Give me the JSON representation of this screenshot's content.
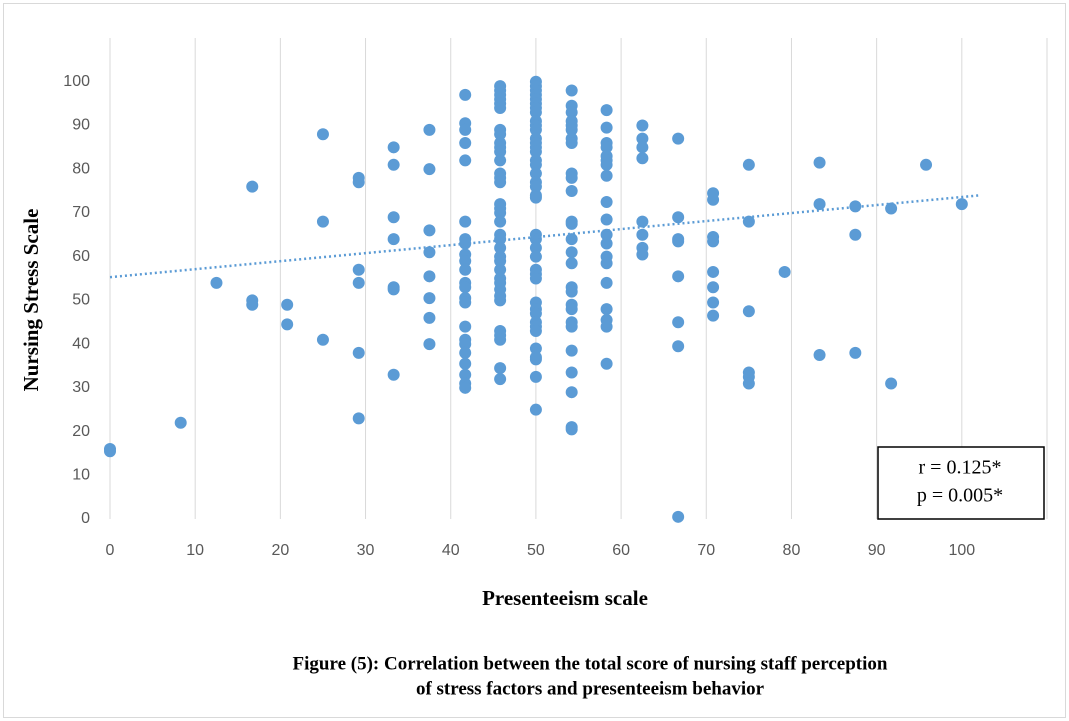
{
  "chart_data": {
    "type": "scatter",
    "x_label": "Presenteeism scale",
    "y_label": "Nursing Stress Scale",
    "caption": [
      "Figure (5): Correlation between the total score of nursing staff perception",
      "of stress factors and presenteeism behavior"
    ],
    "annotations": [
      "r = 0.125*",
      "p = 0.005*"
    ],
    "color": "#5b9bd5",
    "trendline": {
      "x": [
        0,
        102
      ],
      "y": [
        55.3,
        74
      ]
    },
    "xlim": [
      0,
      110
    ],
    "xticks": [
      0,
      10,
      20,
      30,
      40,
      50,
      60,
      70,
      80,
      90,
      100
    ],
    "ylim": [
      0,
      110
    ],
    "yticks": [
      0,
      10,
      20,
      30,
      40,
      50,
      60,
      70,
      80,
      90,
      100
    ],
    "grid": true,
    "x": [
      0,
      0,
      8.3,
      12.5,
      16.7,
      16.7,
      16.7,
      20.8,
      20.8,
      25,
      25,
      25,
      29.2,
      29.2,
      29.2,
      29.2,
      29.2,
      29.2,
      33.3,
      33.3,
      33.3,
      33.3,
      33.3,
      33.3,
      33.3,
      37.5,
      37.5,
      37.5,
      37.5,
      37.5,
      37.5,
      37.5,
      37.5,
      41.7,
      41.7,
      41.7,
      41.7,
      41.7,
      41.7,
      41.7,
      41.7,
      41.7,
      41.7,
      41.7,
      41.7,
      41.7,
      41.7,
      41.7,
      41.7,
      41.7,
      41.7,
      41.7,
      41.7,
      41.7,
      41.7,
      41.7,
      45.8,
      45.8,
      45.8,
      45.8,
      45.8,
      45.8,
      45.8,
      45.8,
      45.8,
      45.8,
      45.8,
      45.8,
      45.8,
      45.8,
      45.8,
      45.8,
      45.8,
      45.8,
      45.8,
      45.8,
      45.8,
      45.8,
      45.8,
      45.8,
      45.8,
      45.8,
      45.8,
      45.8,
      45.8,
      45.8,
      45.8,
      45.8,
      45.8,
      45.8,
      45.8,
      50,
      50,
      50,
      50,
      50,
      50,
      50,
      50,
      50,
      50,
      50,
      50,
      50,
      50,
      50,
      50,
      50,
      50,
      50,
      50,
      50,
      50,
      50,
      50,
      50,
      50,
      50,
      50,
      50,
      50,
      50,
      50,
      50,
      50,
      50,
      50,
      50,
      50,
      50,
      50,
      54.2,
      54.2,
      54.2,
      54.2,
      54.2,
      54.2,
      54.2,
      54.2,
      54.2,
      54.2,
      54.2,
      54.2,
      54.2,
      54.2,
      54.2,
      54.2,
      54.2,
      54.2,
      54.2,
      54.2,
      54.2,
      54.2,
      54.2,
      54.2,
      54.2,
      54.2,
      54.2,
      58.3,
      58.3,
      58.3,
      58.3,
      58.3,
      58.3,
      58.3,
      58.3,
      58.3,
      58.3,
      58.3,
      58.3,
      58.3,
      58.3,
      58.3,
      58.3,
      58.3,
      58.3,
      58.3,
      62.5,
      62.5,
      62.5,
      62.5,
      62.5,
      62.5,
      62.5,
      62.5,
      66.7,
      66.7,
      66.7,
      66.7,
      66.7,
      66.7,
      66.7,
      66.7,
      70.8,
      70.8,
      70.8,
      70.8,
      70.8,
      70.8,
      70.8,
      70.8,
      75,
      75,
      75,
      75,
      75,
      75,
      79.2,
      83.3,
      83.3,
      83.3,
      87.5,
      87.5,
      87.5,
      91.7,
      91.7,
      95.8,
      100
    ],
    "values": [
      16,
      15.5,
      22,
      54,
      76,
      50,
      49,
      49,
      44.5,
      88,
      68,
      41,
      78,
      77,
      57,
      54,
      38,
      23,
      85,
      81,
      69,
      64,
      53,
      52.5,
      33,
      89,
      80,
      66,
      61,
      55.5,
      50.5,
      46,
      40,
      97,
      90.5,
      89,
      86,
      82,
      68,
      64,
      63,
      60.5,
      59,
      57,
      54,
      53,
      50.5,
      49.5,
      44,
      41,
      40,
      38,
      35.5,
      33,
      31,
      30,
      99,
      98,
      97,
      96,
      95,
      94,
      89,
      88,
      86,
      85,
      84,
      82,
      79,
      78,
      77,
      72,
      71,
      70,
      68,
      65,
      64,
      62,
      60,
      59,
      57,
      55,
      54,
      52.5,
      51,
      50,
      43,
      42,
      41,
      34.5,
      32,
      100,
      99,
      98,
      97,
      96,
      95,
      94,
      93,
      91,
      90,
      89,
      87,
      86,
      85,
      84,
      82,
      81,
      79,
      77,
      76,
      74,
      73.5,
      65,
      64,
      62,
      60,
      57,
      56,
      55,
      49.5,
      48,
      47,
      45,
      44,
      43,
      39,
      37,
      36.5,
      32.5,
      25,
      98,
      94.5,
      93,
      91,
      90,
      89,
      87,
      86,
      79,
      78,
      75,
      68,
      67.5,
      64,
      61,
      58.5,
      53,
      52,
      49,
      48,
      45,
      44,
      38.5,
      33.5,
      29,
      21,
      20.5,
      93.5,
      89.5,
      86,
      85,
      83,
      82,
      81,
      78.5,
      72.5,
      68.5,
      65,
      63,
      60,
      58.5,
      54,
      48,
      45.5,
      44,
      35.5,
      90,
      87,
      85,
      82.5,
      68,
      65,
      62,
      60.5,
      87,
      69,
      64,
      63.5,
      55.5,
      45,
      39.5,
      0.5,
      74.5,
      73,
      64.5,
      63.5,
      56.5,
      53,
      49.5,
      46.5,
      81,
      68,
      47.5,
      33.5,
      32.5,
      31,
      56.5,
      81.5,
      72,
      37.5,
      71.5,
      65,
      38,
      71,
      31,
      81,
      72
    ]
  }
}
